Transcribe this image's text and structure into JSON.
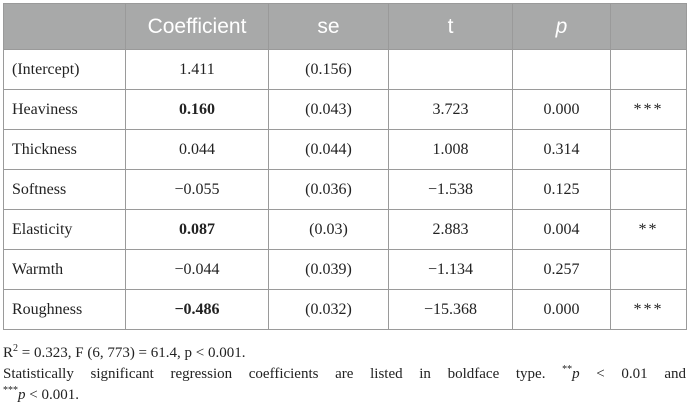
{
  "table": {
    "headers": [
      "",
      "Coefficient",
      "se",
      "t",
      "p",
      ""
    ],
    "rows": [
      {
        "label": "(Intercept)",
        "coefficient": "1.411",
        "bold": false,
        "se": "(0.156)",
        "t": "",
        "p": "",
        "sig": ""
      },
      {
        "label": "Heaviness",
        "coefficient": "0.160",
        "bold": true,
        "se": "(0.043)",
        "t": "3.723",
        "p": "0.000",
        "sig": "***"
      },
      {
        "label": "Thickness",
        "coefficient": "0.044",
        "bold": false,
        "se": "(0.044)",
        "t": "1.008",
        "p": "0.314",
        "sig": ""
      },
      {
        "label": "Softness",
        "coefficient": "−0.055",
        "bold": false,
        "se": "(0.036)",
        "t": "−1.538",
        "p": "0.125",
        "sig": ""
      },
      {
        "label": "Elasticity",
        "coefficient": "0.087",
        "bold": true,
        "se": "(0.03)",
        "t": "2.883",
        "p": "0.004",
        "sig": "**"
      },
      {
        "label": "Warmth",
        "coefficient": "−0.044",
        "bold": false,
        "se": "(0.039)",
        "t": "−1.134",
        "p": "0.257",
        "sig": ""
      },
      {
        "label": "Roughness",
        "coefficient": "−0.486",
        "bold": true,
        "se": "(0.032)",
        "t": "−15.368",
        "p": "0.000",
        "sig": "***"
      }
    ]
  },
  "notes": {
    "r_label": "R",
    "r_sup": "2",
    "line1_rest": " = 0.323, F (6, 773) = 61.4, p < 0.001.",
    "line2_a": "Statistically significant regression coefficients are listed in boldface type. ",
    "line2_b": "**",
    "line2_c": "p",
    "line2_d": " < 0.01 and",
    "line3_a": "***",
    "line3_b": "p",
    "line3_c": " < 0.001."
  }
}
